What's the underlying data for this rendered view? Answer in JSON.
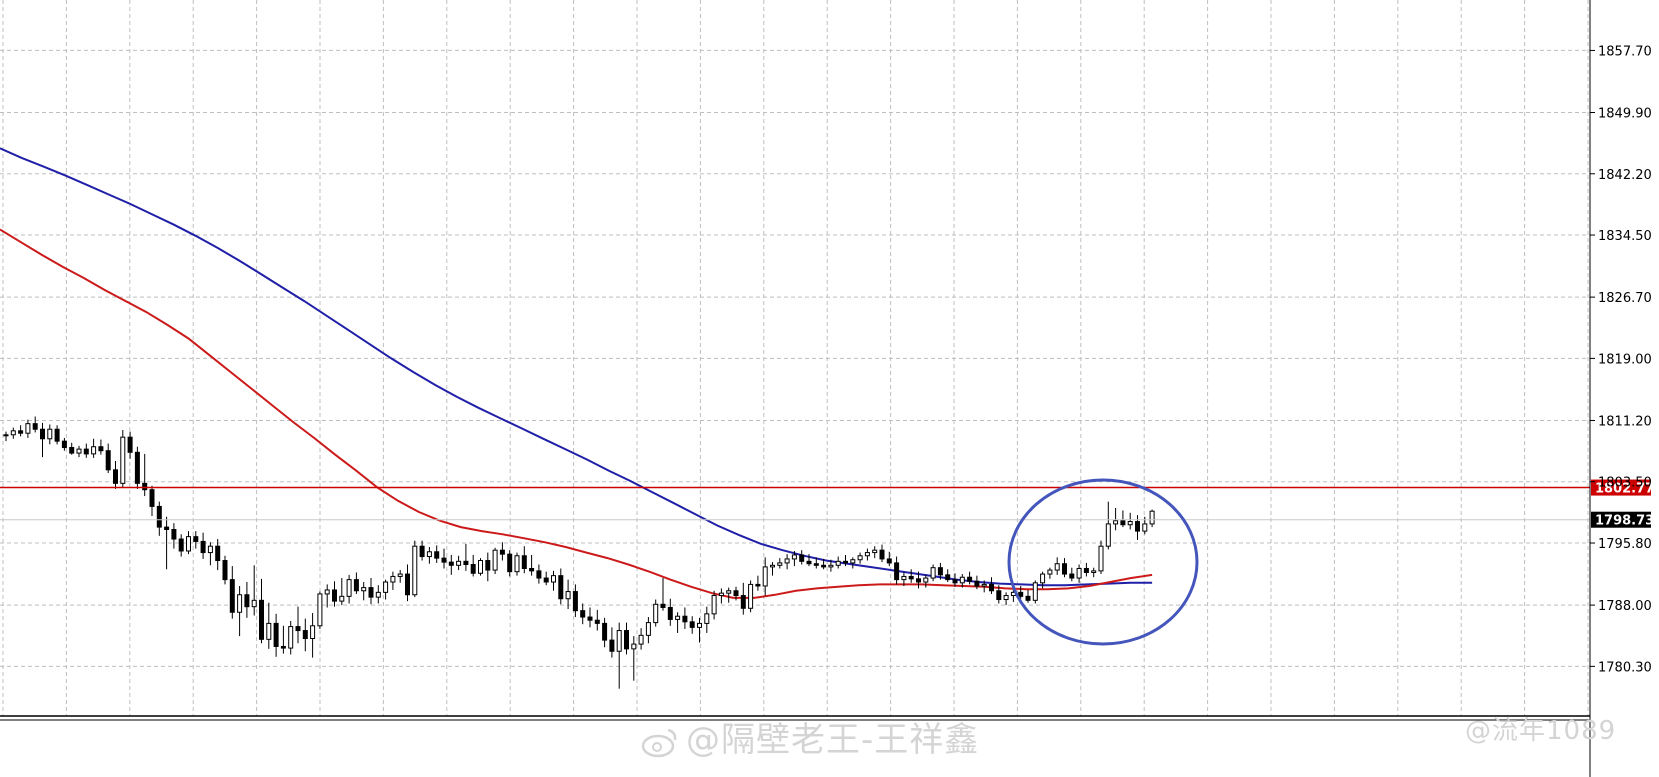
{
  "chart_data": {
    "type": "candlestick",
    "title": "",
    "ylim": [
      1776.2,
      1861.9
    ],
    "y_ticks": [
      "1857.70",
      "1849.90",
      "1842.20",
      "1834.50",
      "1826.70",
      "1819.00",
      "1811.20",
      "1803.50",
      "1795.80",
      "1788.00",
      "1780.30"
    ],
    "grid": true,
    "levels": {
      "resistance": {
        "value": 1802.77,
        "label": "1802.77",
        "color": "#cc0000"
      },
      "last_price": {
        "value": 1798.73,
        "label": "1798.73",
        "color": "#000000"
      }
    },
    "colors": {
      "blue_ma": "#1f1fa8",
      "red_ma": "#cc1a1a",
      "highlight_circle": "#4455bb",
      "grid": "#bfbfbf"
    },
    "moving_averages": [
      {
        "color": "blue",
        "values": [
          1845.4,
          1844.2,
          1843.1,
          1842.0,
          1840.8,
          1839.6,
          1838.4,
          1837.1,
          1835.8,
          1834.4,
          1832.9,
          1831.3,
          1829.6,
          1827.9,
          1826.2,
          1824.4,
          1822.6,
          1820.8,
          1819.0,
          1817.3,
          1815.7,
          1814.2,
          1812.8,
          1811.5,
          1810.2,
          1808.9,
          1807.6,
          1806.3,
          1804.9,
          1803.6,
          1802.2,
          1800.8,
          1799.4,
          1798.0,
          1796.8,
          1795.7,
          1794.9,
          1794.2,
          1793.6,
          1793.2,
          1792.8,
          1792.4,
          1792.0,
          1791.6,
          1791.2,
          1790.9,
          1790.7,
          1790.6,
          1790.5,
          1790.5,
          1790.6,
          1790.7,
          1790.8,
          1790.8
        ]
      },
      {
        "color": "red",
        "values": [
          1835.2,
          1833.6,
          1832.0,
          1830.5,
          1829.1,
          1827.6,
          1826.2,
          1824.8,
          1823.2,
          1821.5,
          1819.4,
          1817.3,
          1815.2,
          1813.1,
          1811.0,
          1809.0,
          1806.9,
          1804.9,
          1802.8,
          1801.1,
          1799.7,
          1798.6,
          1797.8,
          1797.3,
          1796.9,
          1796.4,
          1795.9,
          1795.3,
          1794.6,
          1793.9,
          1793.1,
          1792.2,
          1791.2,
          1790.3,
          1789.5,
          1788.9,
          1788.9,
          1789.3,
          1789.8,
          1790.1,
          1790.3,
          1790.5,
          1790.6,
          1790.6,
          1790.6,
          1790.5,
          1790.4,
          1790.3,
          1790.1,
          1790.0,
          1790.0,
          1790.1,
          1790.4,
          1790.9,
          1791.4,
          1791.8
        ]
      }
    ],
    "candles": [
      [
        1809.3,
        1809.8,
        1808.6,
        1809.4
      ],
      [
        1809.4,
        1810.3,
        1808.9,
        1809.9
      ],
      [
        1809.9,
        1810.6,
        1809.2,
        1809.6
      ],
      [
        1809.6,
        1811.3,
        1809.0,
        1810.8
      ],
      [
        1810.8,
        1811.7,
        1809.7,
        1810.1
      ],
      [
        1810.1,
        1810.9,
        1806.6,
        1808.9
      ],
      [
        1808.9,
        1810.7,
        1808.2,
        1810.1
      ],
      [
        1810.1,
        1810.6,
        1808.2,
        1808.6
      ],
      [
        1808.6,
        1809.0,
        1807.4,
        1807.8
      ],
      [
        1807.8,
        1808.4,
        1806.9,
        1807.1
      ],
      [
        1807.1,
        1808.0,
        1806.6,
        1807.6
      ],
      [
        1807.6,
        1808.3,
        1806.5,
        1807.0
      ],
      [
        1807.0,
        1808.9,
        1806.5,
        1807.9
      ],
      [
        1807.9,
        1808.8,
        1806.9,
        1807.4
      ],
      [
        1807.4,
        1808.3,
        1804.6,
        1805.0
      ],
      [
        1805.0,
        1806.1,
        1802.6,
        1803.3
      ],
      [
        1803.3,
        1810.0,
        1802.7,
        1809.1
      ],
      [
        1809.1,
        1809.8,
        1806.4,
        1807.2
      ],
      [
        1807.2,
        1807.9,
        1802.6,
        1803.3
      ],
      [
        1803.3,
        1807.0,
        1801.7,
        1802.5
      ],
      [
        1802.5,
        1803.0,
        1799.2,
        1800.4
      ],
      [
        1800.4,
        1801.0,
        1796.7,
        1797.8
      ],
      [
        1797.8,
        1799.1,
        1792.5,
        1797.5
      ],
      [
        1797.5,
        1798.3,
        1795.1,
        1796.3
      ],
      [
        1796.3,
        1796.9,
        1794.1,
        1794.8
      ],
      [
        1794.8,
        1797.3,
        1794.4,
        1796.6
      ],
      [
        1796.6,
        1797.3,
        1795.1,
        1796.0
      ],
      [
        1796.0,
        1797.1,
        1793.8,
        1794.6
      ],
      [
        1794.6,
        1795.9,
        1793.0,
        1795.4
      ],
      [
        1795.4,
        1796.3,
        1792.4,
        1793.6
      ],
      [
        1793.6,
        1794.2,
        1790.6,
        1791.2
      ],
      [
        1791.2,
        1792.9,
        1786.3,
        1787.1
      ],
      [
        1787.1,
        1790.4,
        1784.1,
        1789.3
      ],
      [
        1789.3,
        1790.9,
        1786.4,
        1787.8
      ],
      [
        1787.8,
        1793.0,
        1786.7,
        1788.6
      ],
      [
        1788.6,
        1791.3,
        1783.2,
        1783.7
      ],
      [
        1783.7,
        1788.3,
        1782.5,
        1785.7
      ],
      [
        1785.7,
        1786.9,
        1781.5,
        1782.8
      ],
      [
        1782.8,
        1785.4,
        1781.9,
        1782.6
      ],
      [
        1782.6,
        1786.0,
        1781.8,
        1785.3
      ],
      [
        1785.3,
        1787.8,
        1783.2,
        1784.8
      ],
      [
        1784.8,
        1786.3,
        1782.2,
        1783.8
      ],
      [
        1783.8,
        1787.0,
        1781.4,
        1785.4
      ],
      [
        1785.4,
        1789.7,
        1785.0,
        1789.4
      ],
      [
        1789.4,
        1790.6,
        1787.7,
        1789.9
      ],
      [
        1789.9,
        1791.0,
        1787.8,
        1788.5
      ],
      [
        1788.5,
        1791.4,
        1788.0,
        1789.1
      ],
      [
        1789.1,
        1791.8,
        1788.2,
        1791.2
      ],
      [
        1791.2,
        1792.1,
        1789.4,
        1789.8
      ],
      [
        1789.8,
        1790.9,
        1788.6,
        1790.2
      ],
      [
        1790.2,
        1791.4,
        1788.1,
        1789.0
      ],
      [
        1789.0,
        1790.5,
        1788.2,
        1789.6
      ],
      [
        1789.6,
        1791.2,
        1788.7,
        1790.9
      ],
      [
        1790.9,
        1792.2,
        1789.9,
        1791.6
      ],
      [
        1791.6,
        1792.4,
        1790.8,
        1791.9
      ],
      [
        1791.9,
        1793.1,
        1788.5,
        1789.3
      ],
      [
        1789.3,
        1796.1,
        1789.0,
        1795.4
      ],
      [
        1795.4,
        1796.1,
        1793.6,
        1794.1
      ],
      [
        1794.1,
        1795.3,
        1793.2,
        1794.7
      ],
      [
        1794.7,
        1795.5,
        1793.3,
        1793.9
      ],
      [
        1793.9,
        1795.1,
        1792.6,
        1793.4
      ],
      [
        1793.4,
        1794.3,
        1791.8,
        1793.0
      ],
      [
        1793.0,
        1794.2,
        1792.4,
        1793.5
      ],
      [
        1793.5,
        1795.7,
        1792.3,
        1793.1
      ],
      [
        1793.1,
        1794.3,
        1791.6,
        1792.0
      ],
      [
        1792.0,
        1793.9,
        1791.7,
        1793.6
      ],
      [
        1793.6,
        1794.6,
        1791.0,
        1792.4
      ],
      [
        1792.4,
        1795.2,
        1791.9,
        1794.9
      ],
      [
        1794.9,
        1795.9,
        1793.6,
        1794.4
      ],
      [
        1794.4,
        1794.9,
        1791.6,
        1792.2
      ],
      [
        1792.2,
        1794.6,
        1791.7,
        1794.2
      ],
      [
        1794.2,
        1795.4,
        1792.0,
        1792.6
      ],
      [
        1792.6,
        1794.3,
        1791.7,
        1792.3
      ],
      [
        1792.3,
        1793.1,
        1790.7,
        1791.4
      ],
      [
        1791.4,
        1792.2,
        1790.5,
        1790.9
      ],
      [
        1790.9,
        1792.3,
        1789.8,
        1791.7
      ],
      [
        1791.7,
        1792.6,
        1788.1,
        1788.8
      ],
      [
        1788.8,
        1791.2,
        1787.5,
        1789.7
      ],
      [
        1789.7,
        1790.6,
        1786.5,
        1787.3
      ],
      [
        1787.3,
        1788.2,
        1785.6,
        1786.5
      ],
      [
        1786.5,
        1787.7,
        1785.2,
        1786.1
      ],
      [
        1786.1,
        1787.4,
        1784.8,
        1785.7
      ],
      [
        1785.7,
        1786.4,
        1782.7,
        1783.6
      ],
      [
        1783.6,
        1785.2,
        1781.4,
        1782.2
      ],
      [
        1782.2,
        1785.8,
        1777.5,
        1784.8
      ],
      [
        1784.8,
        1785.8,
        1781.8,
        1782.5
      ],
      [
        1782.5,
        1784.1,
        1778.5,
        1783.1
      ],
      [
        1783.1,
        1785.1,
        1782.4,
        1784.2
      ],
      [
        1784.2,
        1786.5,
        1783.2,
        1785.8
      ],
      [
        1785.8,
        1788.7,
        1785.3,
        1788.1
      ],
      [
        1788.1,
        1791.4,
        1787.3,
        1787.7
      ],
      [
        1787.7,
        1788.8,
        1785.4,
        1786.2
      ],
      [
        1786.2,
        1787.1,
        1784.5,
        1786.6
      ],
      [
        1786.6,
        1787.7,
        1785.0,
        1785.9
      ],
      [
        1785.9,
        1786.6,
        1784.4,
        1785.2
      ],
      [
        1785.2,
        1786.4,
        1783.3,
        1785.7
      ],
      [
        1785.7,
        1787.8,
        1784.5,
        1786.9
      ],
      [
        1786.9,
        1789.8,
        1786.2,
        1789.2
      ],
      [
        1789.2,
        1790.1,
        1788.2,
        1789.5
      ],
      [
        1789.5,
        1790.2,
        1788.3,
        1789.8
      ],
      [
        1789.8,
        1790.3,
        1788.6,
        1789.2
      ],
      [
        1789.2,
        1790.8,
        1786.8,
        1787.6
      ],
      [
        1787.6,
        1791.1,
        1787.1,
        1790.6
      ],
      [
        1790.6,
        1791.7,
        1789.8,
        1790.4
      ],
      [
        1790.4,
        1794.0,
        1789.2,
        1792.8
      ],
      [
        1792.8,
        1793.4,
        1791.7,
        1793.0
      ],
      [
        1793.0,
        1793.9,
        1792.6,
        1793.3
      ],
      [
        1793.3,
        1794.4,
        1792.5,
        1793.8
      ],
      [
        1793.8,
        1794.8,
        1792.9,
        1794.3
      ],
      [
        1794.3,
        1794.9,
        1793.1,
        1793.5
      ],
      [
        1793.5,
        1794.4,
        1792.9,
        1793.2
      ],
      [
        1793.2,
        1794.0,
        1792.6,
        1793.0
      ],
      [
        1793.0,
        1793.8,
        1792.5,
        1792.8
      ],
      [
        1792.8,
        1793.7,
        1792.2,
        1793.0
      ],
      [
        1793.0,
        1794.1,
        1792.6,
        1793.5
      ],
      [
        1793.5,
        1794.3,
        1792.9,
        1793.3
      ],
      [
        1793.3,
        1794.0,
        1792.6,
        1793.7
      ],
      [
        1793.7,
        1794.6,
        1793.2,
        1794.2
      ],
      [
        1794.2,
        1795.1,
        1793.6,
        1794.6
      ],
      [
        1794.6,
        1795.4,
        1793.9,
        1794.9
      ],
      [
        1794.9,
        1795.6,
        1793.4,
        1793.8
      ],
      [
        1793.8,
        1794.7,
        1792.9,
        1793.3
      ],
      [
        1793.3,
        1794.1,
        1790.6,
        1791.2
      ],
      [
        1791.2,
        1792.1,
        1790.4,
        1791.6
      ],
      [
        1791.6,
        1792.5,
        1790.8,
        1791.3
      ],
      [
        1791.3,
        1792.2,
        1790.1,
        1790.9
      ],
      [
        1790.9,
        1791.8,
        1790.2,
        1791.4
      ],
      [
        1791.4,
        1793.1,
        1791.0,
        1792.7
      ],
      [
        1792.7,
        1793.3,
        1791.2,
        1791.8
      ],
      [
        1791.8,
        1792.5,
        1790.9,
        1791.2
      ],
      [
        1791.2,
        1792.0,
        1790.3,
        1790.8
      ],
      [
        1790.8,
        1791.9,
        1790.2,
        1791.5
      ],
      [
        1791.5,
        1792.2,
        1790.6,
        1791.0
      ],
      [
        1791.0,
        1791.7,
        1790.0,
        1790.4
      ],
      [
        1790.4,
        1791.1,
        1789.6,
        1790.6
      ],
      [
        1790.6,
        1791.5,
        1789.4,
        1789.8
      ],
      [
        1789.8,
        1790.5,
        1788.2,
        1788.7
      ],
      [
        1788.7,
        1789.6,
        1788.0,
        1789.2
      ],
      [
        1789.2,
        1790.7,
        1788.4,
        1789.6
      ],
      [
        1789.6,
        1790.4,
        1788.8,
        1789.1
      ],
      [
        1789.1,
        1789.9,
        1788.3,
        1788.6
      ],
      [
        1788.6,
        1791.1,
        1788.2,
        1790.8
      ],
      [
        1790.8,
        1792.2,
        1790.1,
        1791.9
      ],
      [
        1791.9,
        1792.7,
        1791.3,
        1792.4
      ],
      [
        1792.4,
        1794.0,
        1791.8,
        1793.2
      ],
      [
        1793.2,
        1793.9,
        1791.5,
        1791.9
      ],
      [
        1791.9,
        1792.7,
        1791.0,
        1791.4
      ],
      [
        1791.4,
        1793.1,
        1790.8,
        1792.6
      ],
      [
        1792.6,
        1793.3,
        1791.6,
        1792.1
      ],
      [
        1792.1,
        1792.7,
        1791.5,
        1792.3
      ],
      [
        1792.3,
        1796.1,
        1791.9,
        1795.4
      ],
      [
        1795.4,
        1801.0,
        1795.0,
        1798.2
      ],
      [
        1798.2,
        1800.2,
        1797.4,
        1798.6
      ],
      [
        1798.6,
        1799.9,
        1797.8,
        1798.1
      ],
      [
        1798.1,
        1799.6,
        1797.5,
        1798.5
      ],
      [
        1798.5,
        1799.3,
        1796.2,
        1797.3
      ],
      [
        1797.3,
        1799.1,
        1796.9,
        1798.2
      ],
      [
        1798.2,
        1800.0,
        1797.8,
        1799.8
      ]
    ]
  },
  "watermark": {
    "main": "@隔壁老王-王祥鑫",
    "side": "@流年1089"
  }
}
